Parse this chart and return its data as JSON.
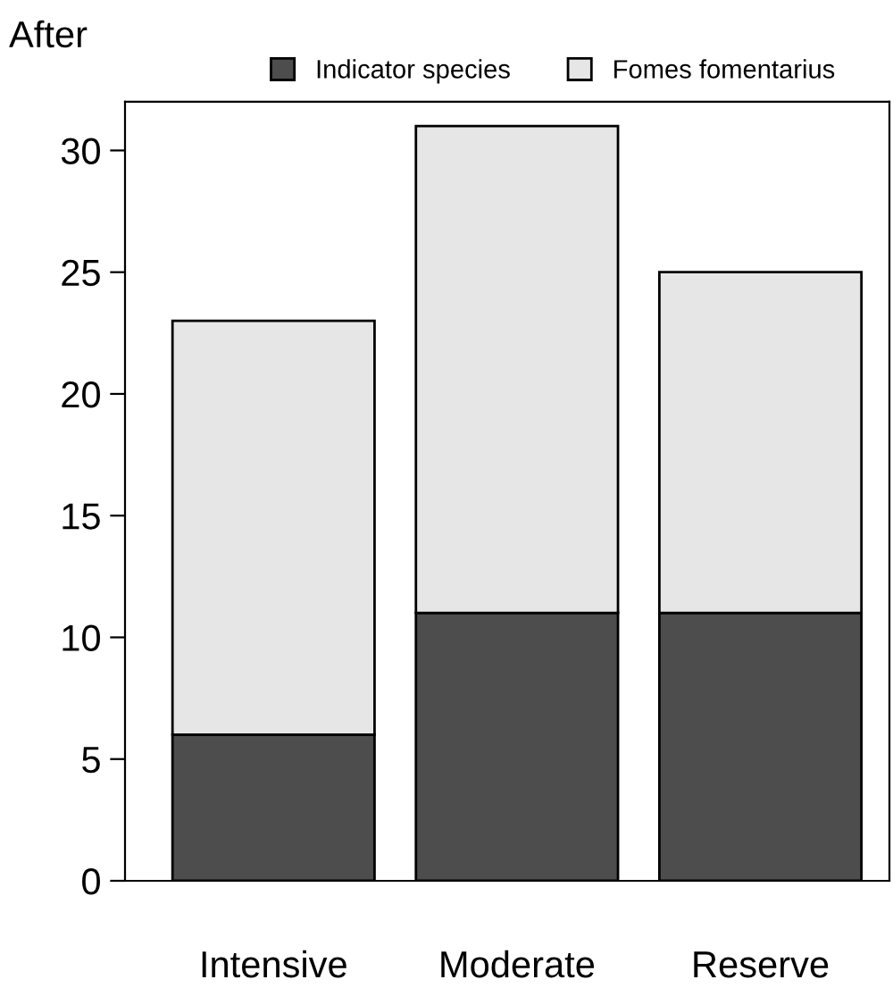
{
  "chart_data": {
    "type": "bar",
    "title": "After",
    "stacked": true,
    "categories": [
      "Intensive",
      "Moderate",
      "Reserve"
    ],
    "series": [
      {
        "name": "Indicator species",
        "color": "#4d4d4d",
        "values": [
          6,
          11,
          11
        ]
      },
      {
        "name": "Fomes fomentarius",
        "color": "#e6e6e6",
        "values": [
          17,
          20,
          14
        ]
      }
    ],
    "ylim": [
      0,
      32
    ],
    "yticks": [
      0,
      5,
      10,
      15,
      20,
      25,
      30
    ],
    "legend": "top",
    "grid": false
  }
}
